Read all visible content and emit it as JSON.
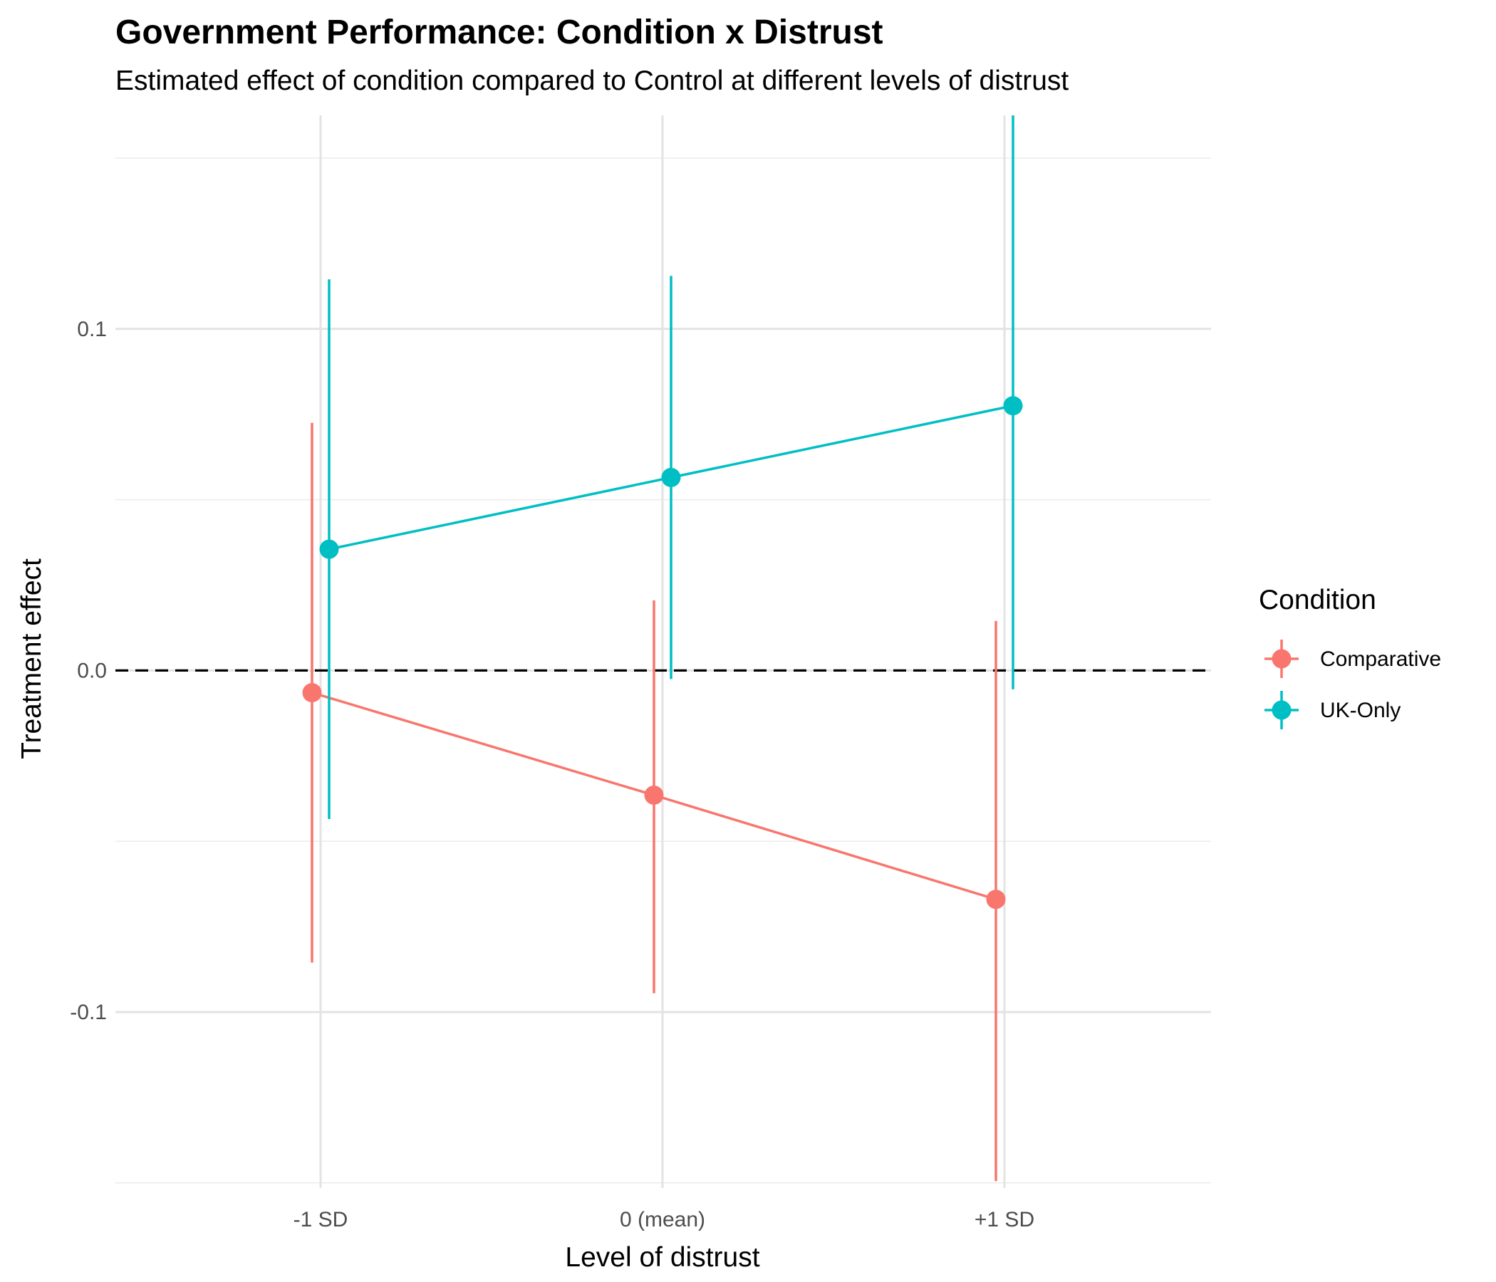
{
  "chart_data": {
    "type": "line",
    "title": "Government Performance: Condition x Distrust",
    "subtitle": "Estimated effect of condition compared to Control at different levels of distrust",
    "xlabel": "Level of distrust",
    "ylabel": "Treatment effect",
    "categories": [
      "-1 SD",
      "0 (mean)",
      "+1 SD"
    ],
    "ylim": [
      -0.1515,
      0.1625
    ],
    "yticks": [
      -0.1,
      0.0,
      0.1
    ],
    "ytick_labels": [
      "-0.1",
      "0.0",
      "0.1"
    ],
    "reference_line": {
      "y": 0,
      "style": "dashed"
    },
    "grid": true,
    "legend": {
      "title": "Condition",
      "position": "right",
      "entries": [
        "Comparative",
        "UK-Only"
      ]
    },
    "series": [
      {
        "name": "Comparative",
        "color": "#F8766D",
        "values": [
          -0.0065,
          -0.0365,
          -0.067
        ],
        "lower": [
          -0.0855,
          -0.0945,
          -0.1495
        ],
        "upper": [
          0.0725,
          0.0205,
          0.0145
        ]
      },
      {
        "name": "UK-Only",
        "color": "#00BFC4",
        "values": [
          0.0355,
          0.0565,
          0.0775
        ],
        "lower": [
          -0.0435,
          -0.0025,
          -0.0055
        ],
        "upper": [
          0.1145,
          0.1155,
          0.1625
        ]
      }
    ]
  }
}
